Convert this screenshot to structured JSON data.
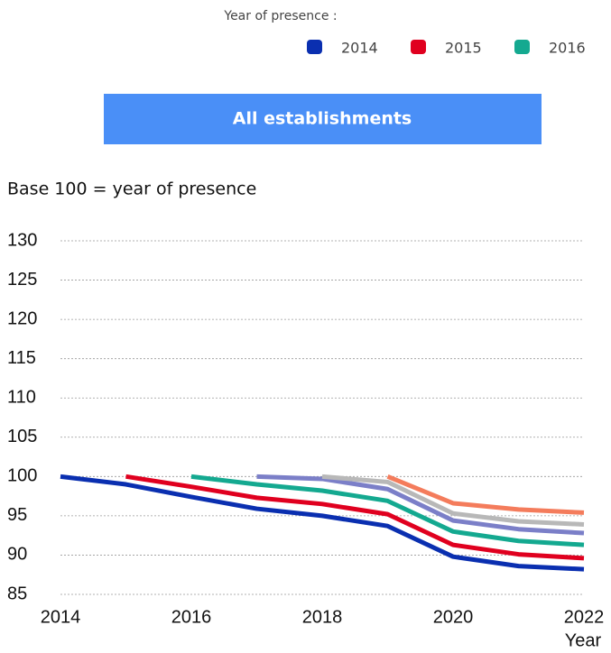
{
  "chart_data": {
    "type": "line",
    "legend_title": "Year of presence :",
    "title": "All establishments",
    "subtitle": "Base 100  = year of presence",
    "x_label": "Year",
    "x": [
      2014,
      2015,
      2016,
      2017,
      2018,
      2019,
      2020,
      2021,
      2022
    ],
    "xlim": [
      2014,
      2022
    ],
    "xticks": [
      2014,
      2016,
      2018,
      2020,
      2022
    ],
    "ylim": [
      85,
      130
    ],
    "yticks": [
      85,
      90,
      95,
      100,
      105,
      110,
      115,
      120,
      125,
      130
    ],
    "grid": true,
    "series": [
      {
        "name": "2014",
        "color": "#0a2fb0",
        "values": [
          100,
          99,
          97.4,
          95.9,
          95,
          93.7,
          89.8,
          88.6,
          88.2
        ]
      },
      {
        "name": "2015",
        "color": "#e0001f",
        "values": [
          null,
          100,
          98.7,
          97.3,
          96.5,
          95.2,
          91.3,
          90.1,
          89.6
        ]
      },
      {
        "name": "2016",
        "color": "#14a990",
        "values": [
          null,
          null,
          100,
          99,
          98.2,
          96.9,
          93,
          91.8,
          91.3
        ]
      },
      {
        "color": "#7b7fc8",
        "values": [
          null,
          null,
          null,
          100,
          99.7,
          98.4,
          94.4,
          93.3,
          92.8
        ]
      },
      {
        "color": "#b8b8b8",
        "values": [
          null,
          null,
          null,
          null,
          100,
          99.3,
          95.3,
          94.3,
          93.9
        ]
      },
      {
        "color": "#f47c5c",
        "values": [
          null,
          null,
          null,
          null,
          null,
          100,
          96.6,
          95.8,
          95.4
        ]
      }
    ]
  }
}
